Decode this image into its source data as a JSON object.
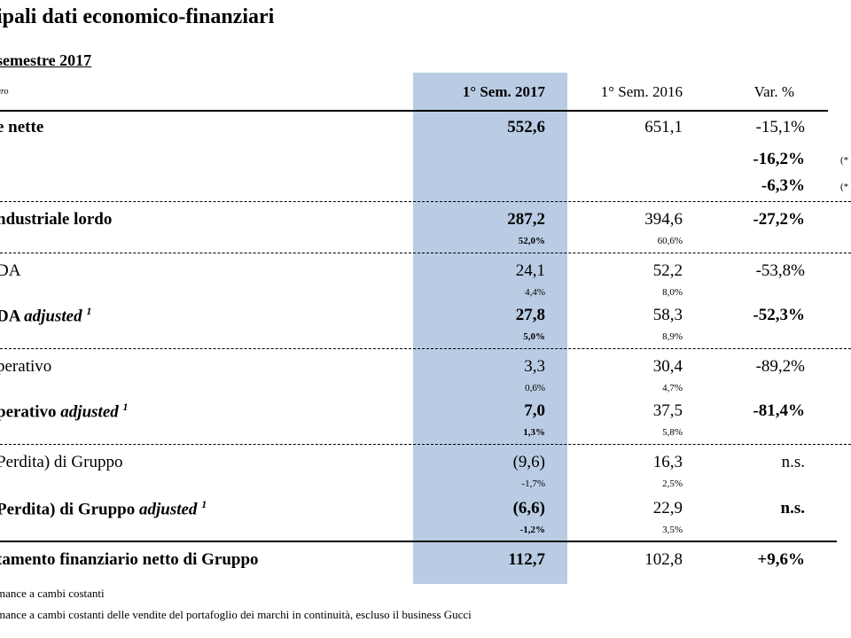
{
  "title": "ipali dati economico-finanziari",
  "subtitle": "semestre 2017",
  "unit_label": "uro",
  "columns": {
    "c1": "1° Sem. 2017",
    "c2": "1° Sem. 2016",
    "c3": "Var. %"
  },
  "rows": {
    "ricavi": {
      "label": "e nette",
      "v1": "552,6",
      "v2": "651,1",
      "v3": "-15,1%"
    },
    "ricavi_cc1": {
      "v3": "-16,2%",
      "note": "(*"
    },
    "ricavi_cc2": {
      "v3": "-6,3%",
      "note": "(*"
    },
    "margine": {
      "label": "ndustriale lordo",
      "v1": "287,2",
      "v2": "394,6",
      "v3": "-27,2%",
      "p1": "52,0%",
      "p2": "60,6%"
    },
    "ebitda": {
      "label": "DA",
      "v1": "24,1",
      "v2": "52,2",
      "v3": "-53,8%",
      "p1": "4,4%",
      "p2": "8,0%"
    },
    "ebitda_adj": {
      "label": "DA",
      "label_it": "adjusted",
      "sup": "1",
      "v1": "27,8",
      "v2": "58,3",
      "v3": "-52,3%",
      "p1": "5,0%",
      "p2": "8,9%"
    },
    "ebit": {
      "label": "perativo",
      "v1": "3,3",
      "v2": "30,4",
      "v3": "-89,2%",
      "p1": "0,6%",
      "p2": "4,7%"
    },
    "ebit_adj": {
      "label": "perativo",
      "label_it": "adjusted",
      "sup": "1",
      "v1": "7,0",
      "v2": "37,5",
      "v3": "-81,4%",
      "p1": "1,3%",
      "p2": "5,8%"
    },
    "utile": {
      "label": "Perdita) di Gruppo",
      "v1": "(9,6)",
      "v2": "16,3",
      "v3": "n.s.",
      "p1": "-1,7%",
      "p2": "2,5%"
    },
    "utile_adj": {
      "label": "Perdita) di Gruppo",
      "label_it": "adjusted",
      "sup": "1",
      "v1": "(6,6)",
      "v2": "22,9",
      "v3": "n.s.",
      "p1": "-1,2%",
      "p2": "3,5%"
    },
    "debito": {
      "label": "tamento finanziario netto di Gruppo",
      "v1": "112,7",
      "v2": "102,8",
      "v3": "+9,6%"
    }
  },
  "footnotes": {
    "f1": "mance a cambi costanti",
    "f2": "mance a cambi costanti delle vendite del portafoglio dei marchi in continuità, escluso il business Gucci"
  },
  "colors": {
    "highlight_column": "#b9cce4"
  }
}
